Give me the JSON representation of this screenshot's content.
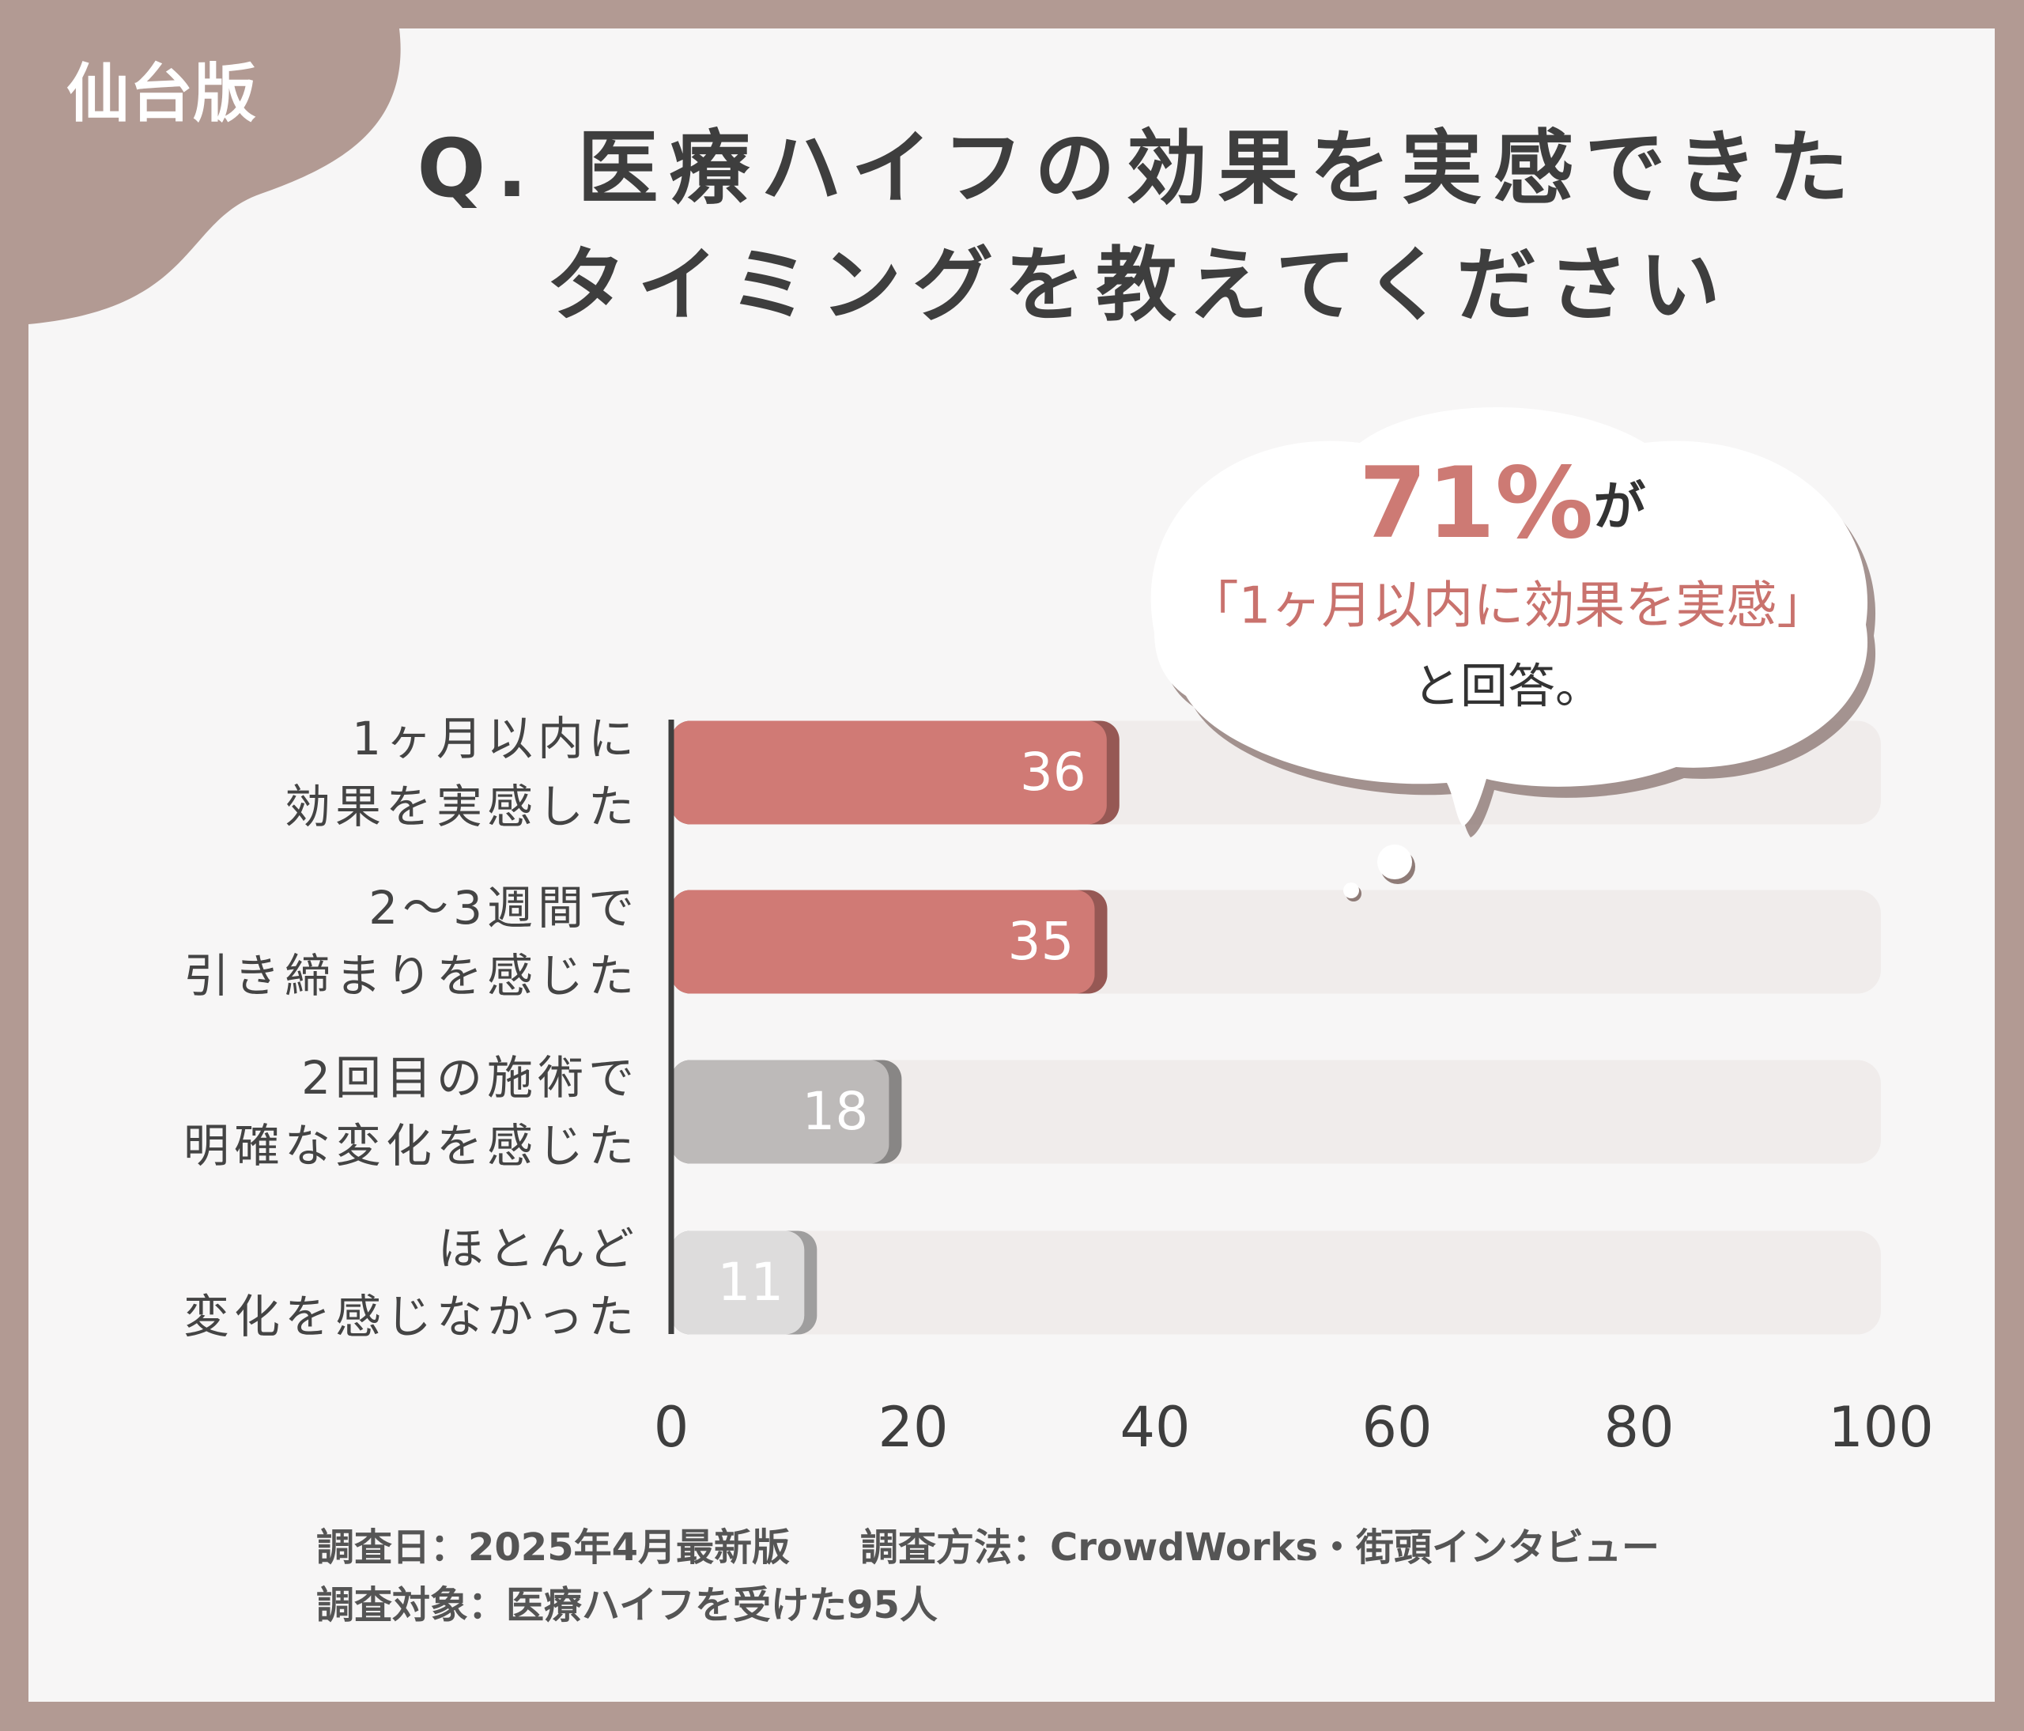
{
  "badge": "仙台版",
  "chart_data": {
    "type": "hbar",
    "title": "Q. 医療ハイフの効果を実感できた\nタイミングを教えてください",
    "categories": [
      "1ヶ月以内に\n効果を実感した",
      "2〜3週間で\n引き締まりを感じた",
      "2回目の施術で\n明確な変化を感じた",
      "ほとんど\n変化を感じなかった"
    ],
    "values": [
      36,
      35,
      18,
      11
    ],
    "colors": [
      "#d07a75",
      "#d07a75",
      "#bdbab9",
      "#dddcdc"
    ],
    "xlim": [
      0,
      100
    ],
    "xticks": [
      0,
      20,
      40,
      60,
      80,
      100
    ],
    "annotation": {
      "highlight": "71%",
      "highlight_suffix": "が",
      "line2": "「1ヶ月以内に効果を実感」",
      "line3": "と回答。"
    }
  },
  "footer": {
    "date": "調査日：2025年4月最新版",
    "method": "調査方法：CrowdWorks・街頭インタビュー",
    "target": "調査対象：医療ハイフを受けた95人"
  }
}
